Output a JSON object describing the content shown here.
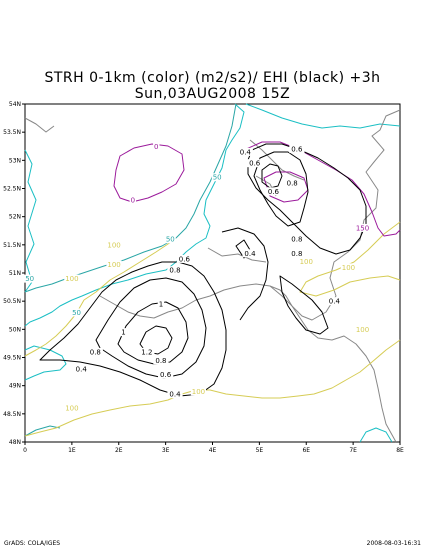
{
  "title_line1": "STRH 0-1km (color) (m2/s2)/ EHI (black) +3h",
  "title_line2": "Sun,03AUG2008 15Z",
  "footer_left": "GrADS: COLA/IGES",
  "footer_right": "2008-08-03-16:31",
  "map": {
    "lon_ticks": [
      "0",
      "1E",
      "2E",
      "3E",
      "4E",
      "5E",
      "6E",
      "7E",
      "8E"
    ],
    "lat_ticks": [
      "48N",
      "48.5N",
      "49N",
      "49.5N",
      "50N",
      "50.5N",
      "51N",
      "51.5N",
      "52N",
      "52.5N",
      "53N",
      "53.5N",
      "54N"
    ],
    "lon_range": [
      0,
      8
    ],
    "lat_range": [
      48,
      54
    ],
    "colors": {
      "coast": "#1bbfc4",
      "border": "#888888",
      "strh_0": "#9b1a9b",
      "strh_50": "#2aa6a6",
      "strh_100": "#d6cc55",
      "strh_150": "#9b1a9b",
      "ehi": "#000000"
    },
    "strh_labels": [
      {
        "text": "0",
        "lon": 2.8,
        "lat": 53.25
      },
      {
        "text": "0",
        "lon": 2.3,
        "lat": 52.3
      },
      {
        "text": "50",
        "lon": 4.1,
        "lat": 52.7
      },
      {
        "text": "50",
        "lon": 3.1,
        "lat": 51.6
      },
      {
        "text": "50",
        "lon": 0.1,
        "lat": 50.9
      },
      {
        "text": "50",
        "lon": 1.1,
        "lat": 50.3
      },
      {
        "text": "100",
        "lon": 1.9,
        "lat": 51.5
      },
      {
        "text": "100",
        "lon": 1.9,
        "lat": 51.15
      },
      {
        "text": "100",
        "lon": 1.0,
        "lat": 50.9
      },
      {
        "text": "100",
        "lon": 6.0,
        "lat": 51.2
      },
      {
        "text": "100",
        "lon": 6.9,
        "lat": 51.1
      },
      {
        "text": "100",
        "lon": 7.2,
        "lat": 50.0
      },
      {
        "text": "100",
        "lon": 3.7,
        "lat": 48.9
      },
      {
        "text": "100",
        "lon": 1.0,
        "lat": 48.6
      },
      {
        "text": "150",
        "lon": 7.2,
        "lat": 51.8
      }
    ],
    "ehi_labels": [
      {
        "text": "0.4",
        "lon": 4.7,
        "lat": 53.15
      },
      {
        "text": "0.6",
        "lon": 5.8,
        "lat": 53.2
      },
      {
        "text": "0.6",
        "lon": 4.9,
        "lat": 52.95
      },
      {
        "text": "0.8",
        "lon": 5.7,
        "lat": 52.6
      },
      {
        "text": "0.6",
        "lon": 5.3,
        "lat": 52.45
      },
      {
        "text": "0.8",
        "lon": 5.8,
        "lat": 51.6
      },
      {
        "text": "0.8",
        "lon": 5.8,
        "lat": 51.35
      },
      {
        "text": "0.4",
        "lon": 4.8,
        "lat": 51.35
      },
      {
        "text": "0.6",
        "lon": 3.4,
        "lat": 51.25
      },
      {
        "text": "0.8",
        "lon": 3.2,
        "lat": 51.05
      },
      {
        "text": "1",
        "lon": 2.9,
        "lat": 50.45
      },
      {
        "text": "1",
        "lon": 2.1,
        "lat": 49.95
      },
      {
        "text": "1.2",
        "lon": 2.6,
        "lat": 49.6
      },
      {
        "text": "0.8",
        "lon": 1.5,
        "lat": 49.6
      },
      {
        "text": "0.8",
        "lon": 2.9,
        "lat": 49.45
      },
      {
        "text": "0.6",
        "lon": 3.0,
        "lat": 49.2
      },
      {
        "text": "0.4",
        "lon": 1.2,
        "lat": 49.3
      },
      {
        "text": "0.4",
        "lon": 3.2,
        "lat": 48.85
      },
      {
        "text": "0.4",
        "lon": 6.6,
        "lat": 50.5
      }
    ]
  }
}
